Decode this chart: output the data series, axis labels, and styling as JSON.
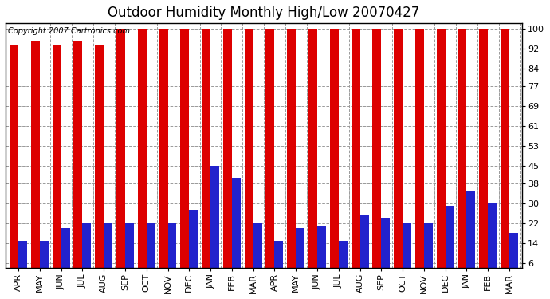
{
  "title": "Outdoor Humidity Monthly High/Low 20070427",
  "copyright_text": "Copyright 2007 Cartronics.com",
  "months": [
    "APR",
    "MAY",
    "JUN",
    "JUL",
    "AUG",
    "SEP",
    "OCT",
    "NOV",
    "DEC",
    "JAN",
    "FEB",
    "MAR",
    "APR",
    "MAY",
    "JUN",
    "JUL",
    "AUG",
    "SEP",
    "OCT",
    "NOV",
    "DEC",
    "JAN",
    "FEB",
    "MAR"
  ],
  "high_values": [
    93,
    95,
    93,
    95,
    93,
    100,
    100,
    100,
    100,
    100,
    100,
    100,
    100,
    100,
    100,
    100,
    100,
    100,
    100,
    100,
    100,
    100,
    100,
    100
  ],
  "low_values": [
    15,
    15,
    20,
    22,
    22,
    22,
    22,
    22,
    27,
    45,
    40,
    22,
    15,
    20,
    21,
    15,
    25,
    24,
    22,
    22,
    29,
    35,
    30,
    18
  ],
  "bar_color_high": "#dd0000",
  "bar_color_low": "#2222cc",
  "background_color": "#ffffff",
  "plot_bg_color": "#ffffff",
  "yticks": [
    6,
    14,
    22,
    30,
    38,
    45,
    53,
    61,
    69,
    77,
    84,
    92,
    100
  ],
  "ylim": [
    4,
    102
  ],
  "grid_color": "#999999",
  "title_fontsize": 12,
  "tick_fontsize": 8,
  "copyright_fontsize": 7
}
